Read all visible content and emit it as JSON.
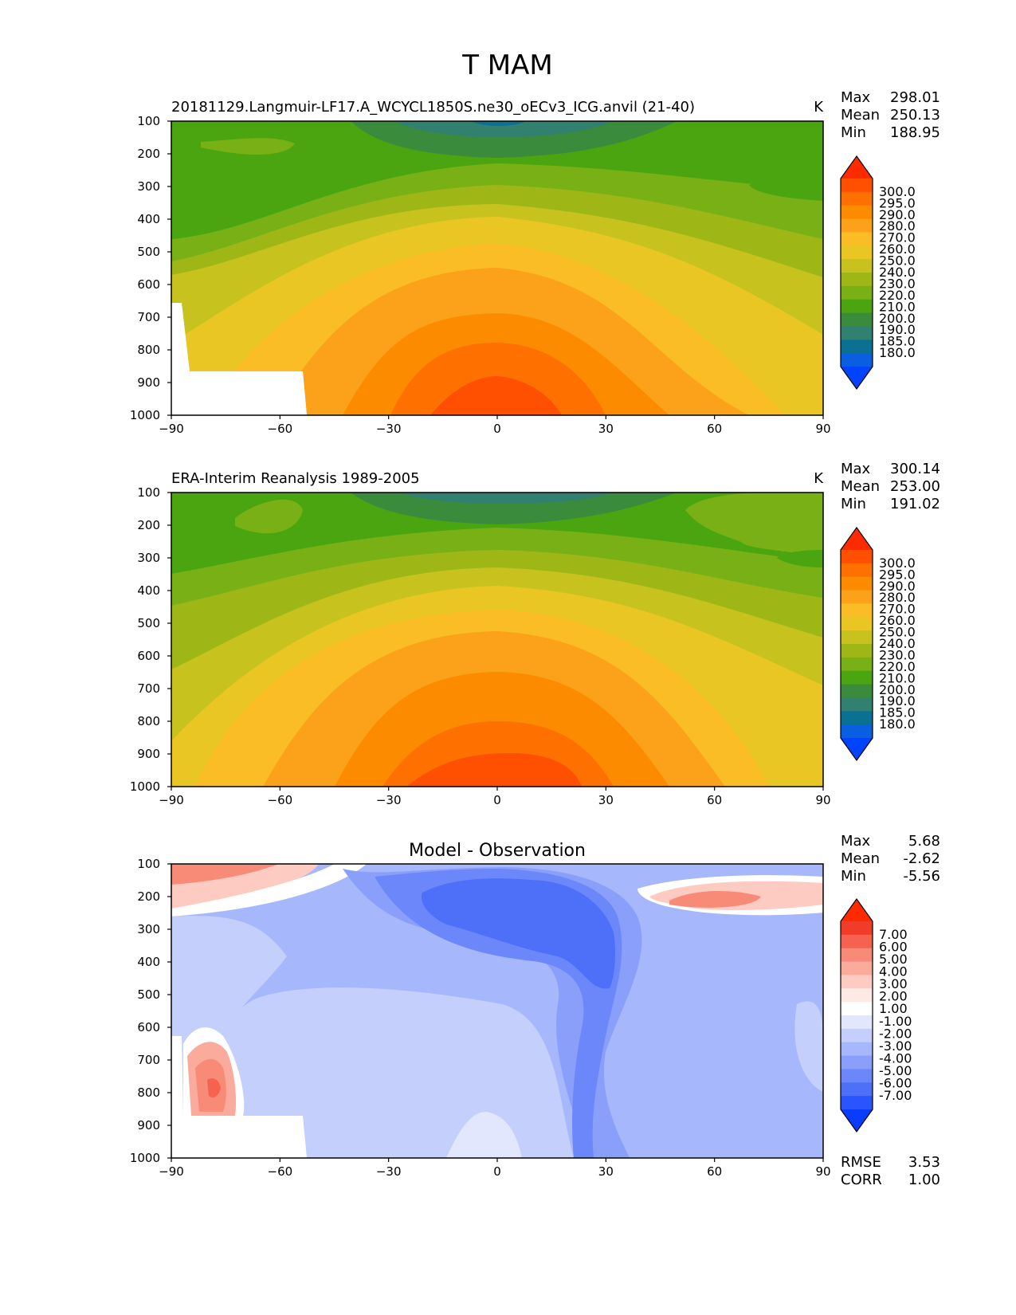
{
  "figure_title": "T MAM",
  "chart_data": [
    {
      "type": "heatmap",
      "title": "20181129.Langmuir-LF17.A_WCYCL1850S.ne30_oECv3_ICG.anvil (21-40)",
      "units": "K",
      "xlim": [
        -90,
        90
      ],
      "ylim": [
        1000,
        100
      ],
      "xticks": [
        "−90",
        "−60",
        "−30",
        "0",
        "30",
        "60",
        "90"
      ],
      "yticks": [
        "100",
        "200",
        "300",
        "400",
        "500",
        "600",
        "700",
        "800",
        "900",
        "1000"
      ],
      "stats": [
        {
          "label": "Max",
          "value": "298.01"
        },
        {
          "label": "Mean",
          "value": "250.13"
        },
        {
          "label": "Min",
          "value": "188.95"
        }
      ],
      "colorbar": {
        "levels": [
          "300.0",
          "295.0",
          "290.0",
          "280.0",
          "270.0",
          "260.0",
          "250.0",
          "240.0",
          "230.0",
          "220.0",
          "210.0",
          "200.0",
          "190.0",
          "185.0",
          "180.0"
        ],
        "colors": [
          "#ff2a00",
          "#ff4f00",
          "#fe7000",
          "#fd8b00",
          "#fca11a",
          "#fbbd26",
          "#eac625",
          "#c7c21d",
          "#9fb716",
          "#79b016",
          "#4aa511",
          "#3a8b3c",
          "#328070",
          "#0b7192",
          "#0a5ee0",
          "#0044ff"
        ]
      },
      "missing_region_note": "white (no data) below ~650-870 hPa poleward of ~55S"
    },
    {
      "type": "heatmap",
      "title": "ERA-Interim Reanalysis 1989-2005",
      "units": "K",
      "xlim": [
        -90,
        90
      ],
      "ylim": [
        1000,
        100
      ],
      "xticks": [
        "−90",
        "−60",
        "−30",
        "0",
        "30",
        "60",
        "90"
      ],
      "yticks": [
        "100",
        "200",
        "300",
        "400",
        "500",
        "600",
        "700",
        "800",
        "900",
        "1000"
      ],
      "stats": [
        {
          "label": "Max",
          "value": "300.14"
        },
        {
          "label": "Mean",
          "value": "253.00"
        },
        {
          "label": "Min",
          "value": "191.02"
        }
      ],
      "colorbar": {
        "levels": [
          "300.0",
          "295.0",
          "290.0",
          "280.0",
          "270.0",
          "260.0",
          "250.0",
          "240.0",
          "230.0",
          "220.0",
          "210.0",
          "200.0",
          "190.0",
          "185.0",
          "180.0"
        ],
        "colors": [
          "#ff2a00",
          "#ff4f00",
          "#fe7000",
          "#fd8b00",
          "#fca11a",
          "#fbbd26",
          "#eac625",
          "#c7c21d",
          "#9fb716",
          "#79b016",
          "#4aa511",
          "#3a8b3c",
          "#328070",
          "#0b7192",
          "#0a5ee0",
          "#0044ff"
        ]
      }
    },
    {
      "type": "heatmap",
      "title": "Model - Observation",
      "units": "",
      "xlim": [
        -90,
        90
      ],
      "ylim": [
        1000,
        100
      ],
      "xticks": [
        "−90",
        "−60",
        "−30",
        "0",
        "30",
        "60",
        "90"
      ],
      "yticks": [
        "100",
        "200",
        "300",
        "400",
        "500",
        "600",
        "700",
        "800",
        "900",
        "1000"
      ],
      "stats": [
        {
          "label": "Max",
          "value": "5.68"
        },
        {
          "label": "Mean",
          "value": "-2.62"
        },
        {
          "label": "Min",
          "value": "-5.56"
        }
      ],
      "colorbar": {
        "levels": [
          "7.00",
          "6.00",
          "5.00",
          "4.00",
          "3.00",
          "2.00",
          "1.00",
          "-1.00",
          "-2.00",
          "-3.00",
          "-4.00",
          "-5.00",
          "-6.00",
          "-7.00"
        ],
        "colors": [
          "#ff2a00",
          "#f23c2a",
          "#f5624f",
          "#f88a78",
          "#fbab9c",
          "#fdcbc1",
          "#feeae5",
          "#ffffff",
          "#e2e7fe",
          "#c4cffc",
          "#a7b7fb",
          "#8a9ffa",
          "#6c87f9",
          "#4e6ff8",
          "#2a55fe",
          "#0a3cff"
        ]
      },
      "footer_stats": [
        {
          "label": "RMSE",
          "value": "3.53"
        },
        {
          "label": "CORR",
          "value": "1.00"
        }
      ]
    }
  ]
}
